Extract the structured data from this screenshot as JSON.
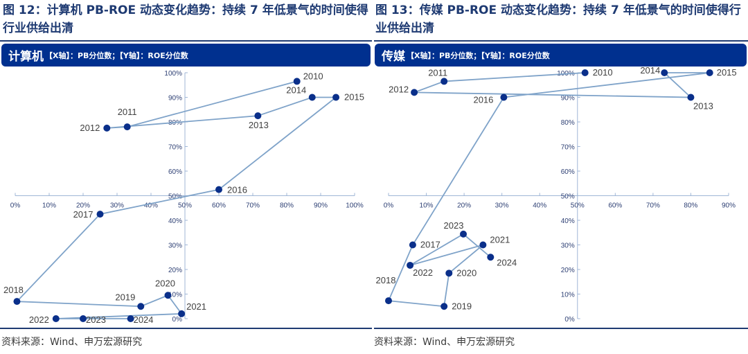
{
  "figures": [
    {
      "title": "图 12：计算机 PB-ROE 动态变化趋势：持续 7 年低景气的时间使得行业供给出清",
      "header_name": "计算机",
      "header_axes": "【X轴】：PB分位数；【Y轴】：ROE分位数",
      "source": "资料来源：Wind、申万宏源研究"
    },
    {
      "title": "图 13：传媒 PB-ROE 动态变化趋势：持续 7 年低景气的时间使得行业供给出清",
      "header_name": "传媒",
      "header_axes": "【X轴】：PB分位数；【Y轴】：ROE分位数",
      "source": "资料来源：Wind、申万宏源研究"
    }
  ],
  "colors": {
    "header": "#00308f",
    "line": "#7fa3c9",
    "marker": "#0a2f8a",
    "title": "#1e3a72"
  },
  "chart_data": [
    {
      "type": "scatter-line",
      "xlabel": "PB分位数",
      "ylabel": "ROE分位数",
      "xlim": [
        0,
        100
      ],
      "ylim": [
        0,
        100
      ],
      "x_axis_crosses_y": 50,
      "y_axis_crosses_x": 50,
      "xticks": [
        "0%",
        "10%",
        "20%",
        "30%",
        "40%",
        "50%",
        "60%",
        "70%",
        "80%",
        "90%",
        "100%"
      ],
      "yticks": [
        "0%",
        "10%",
        "20%",
        "30%",
        "40%",
        "50%",
        "60%",
        "70%",
        "80%",
        "90%",
        "100%"
      ],
      "grid": false,
      "points": [
        {
          "label": "2010",
          "x": 83,
          "y": 96.5
        },
        {
          "label": "2011",
          "x": 33,
          "y": 78
        },
        {
          "label": "2012",
          "x": 27,
          "y": 77.5
        },
        {
          "label": "2013",
          "x": 71.5,
          "y": 82.5
        },
        {
          "label": "2014",
          "x": 87.5,
          "y": 90
        },
        {
          "label": "2015",
          "x": 94.5,
          "y": 90
        },
        {
          "label": "2016",
          "x": 60,
          "y": 52.5
        },
        {
          "label": "2017",
          "x": 25,
          "y": 42.5
        },
        {
          "label": "2018",
          "x": 0.5,
          "y": 7
        },
        {
          "label": "2019",
          "x": 37,
          "y": 5
        },
        {
          "label": "2020",
          "x": 45,
          "y": 9.5
        },
        {
          "label": "2021",
          "x": 49,
          "y": 2
        },
        {
          "label": "2022",
          "x": 12,
          "y": 0
        },
        {
          "label": "2023",
          "x": 20,
          "y": 0
        },
        {
          "label": "2024",
          "x": 34,
          "y": 0
        }
      ]
    },
    {
      "type": "scatter-line",
      "xlabel": "PB分位数",
      "ylabel": "ROE分位数",
      "xlim": [
        0,
        90
      ],
      "ylim": [
        0,
        100
      ],
      "x_axis_crosses_y": 50,
      "y_axis_crosses_x": 50,
      "xticks": [
        "0%",
        "10%",
        "20%",
        "30%",
        "40%",
        "50%",
        "60%",
        "70%",
        "80%",
        "90%"
      ],
      "yticks": [
        "0%",
        "10%",
        "20%",
        "30%",
        "40%",
        "50%",
        "60%",
        "70%",
        "80%",
        "90%",
        "100%"
      ],
      "grid": false,
      "points": [
        {
          "label": "2010",
          "x": 52,
          "y": 100
        },
        {
          "label": "2011",
          "x": 14.7,
          "y": 96.5
        },
        {
          "label": "2012",
          "x": 6.8,
          "y": 92
        },
        {
          "label": "2013",
          "x": 80,
          "y": 90
        },
        {
          "label": "2014",
          "x": 73,
          "y": 100
        },
        {
          "label": "2015",
          "x": 85,
          "y": 100
        },
        {
          "label": "2016",
          "x": 30.5,
          "y": 90
        },
        {
          "label": "2017",
          "x": 6.4,
          "y": 30
        },
        {
          "label": "2018",
          "x": 0,
          "y": 7.3
        },
        {
          "label": "2019",
          "x": 14.7,
          "y": 5
        },
        {
          "label": "2020",
          "x": 16,
          "y": 18.5
        },
        {
          "label": "2021",
          "x": 25,
          "y": 30
        },
        {
          "label": "2022",
          "x": 5.7,
          "y": 21.7
        },
        {
          "label": "2023",
          "x": 19.8,
          "y": 34.4
        },
        {
          "label": "2024",
          "x": 27,
          "y": 25
        }
      ]
    }
  ]
}
